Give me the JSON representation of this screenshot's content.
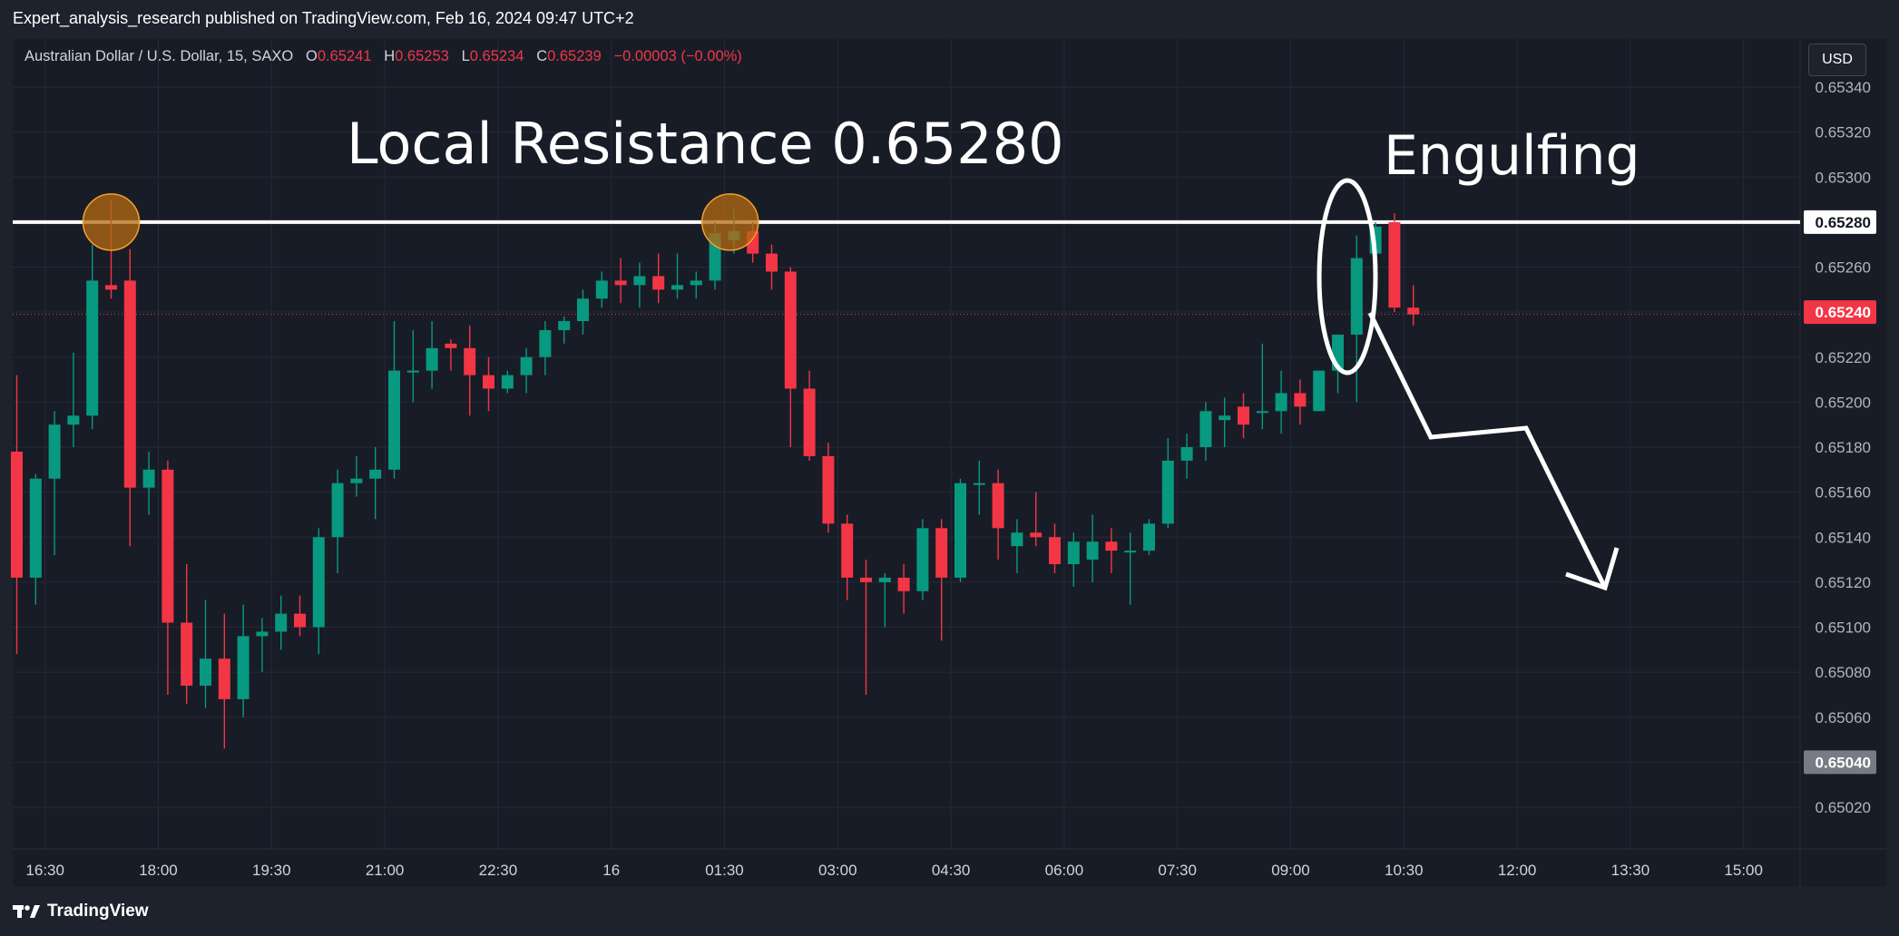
{
  "header": {
    "published_by": "Expert_analysis_research published on TradingView.com, Feb 16, 2024 09:47 UTC+2"
  },
  "symbol": {
    "name": "Australian Dollar / U.S. Dollar, 15, SAXO",
    "open_label": "O",
    "open": "0.65241",
    "high_label": "H",
    "high": "0.65253",
    "low_label": "L",
    "low": "0.65234",
    "close_label": "C",
    "close": "0.65239",
    "change": "−0.00003 (−0.00%)"
  },
  "currency_button": "USD",
  "footer": {
    "brand": "TradingView",
    "logo_icon": "tradingview-logo-icon"
  },
  "colors": {
    "up": "#089981",
    "down": "#f23645",
    "background": "#181c27",
    "grid": "#262a36",
    "annotation": "#ffffff",
    "marker_fill": "#b46a12",
    "marker_stroke": "#f0a030"
  },
  "annotations": {
    "resistance_title": "Local Resistance 0.65280",
    "pattern_label": "Engulfing"
  },
  "chart_data": {
    "type": "candlestick",
    "symbol": "AUDUSD",
    "interval": "15",
    "ylim": [
      0.65005,
      0.65345
    ],
    "y_ticks": [
      "0.65340",
      "0.65320",
      "0.65300",
      "0.65280",
      "0.65260",
      "0.65240",
      "0.65220",
      "0.65200",
      "0.65180",
      "0.65160",
      "0.65140",
      "0.65120",
      "0.65100",
      "0.65080",
      "0.65060",
      "0.65040",
      "0.65020"
    ],
    "x_ticks": [
      "16:30",
      "18:00",
      "19:30",
      "21:00",
      "22:30",
      "16",
      "01:30",
      "03:00",
      "04:30",
      "06:00",
      "07:30",
      "09:00",
      "10:30",
      "12:00",
      "13:30",
      "15:00"
    ],
    "x_tick_bars": [
      1.5,
      7.5,
      13.5,
      19.5,
      25.5,
      31.5,
      37.5,
      43.5,
      49.5,
      55.5,
      61.5,
      67.5,
      73.5,
      79.5,
      85.5,
      91.5
    ],
    "price_labels": [
      {
        "text": "0.65280",
        "value": 0.6528,
        "style": "white"
      },
      {
        "text": "0.65240",
        "value": 0.6524,
        "style": "red"
      },
      {
        "text": "0.65040",
        "value": 0.6504,
        "style": "gray"
      }
    ],
    "resistance_level": 0.6528,
    "current_price": 0.65239,
    "ohlc": [
      [
        0.65178,
        0.65212,
        0.65088,
        0.65122
      ],
      [
        0.65122,
        0.65168,
        0.6511,
        0.65166
      ],
      [
        0.65166,
        0.65196,
        0.65132,
        0.6519
      ],
      [
        0.6519,
        0.65222,
        0.6518,
        0.65194
      ],
      [
        0.65194,
        0.6527,
        0.65188,
        0.65254
      ],
      [
        0.65252,
        0.6529,
        0.65246,
        0.6525
      ],
      [
        0.65254,
        0.65268,
        0.65136,
        0.65162
      ],
      [
        0.65162,
        0.65178,
        0.6515,
        0.6517
      ],
      [
        0.6517,
        0.65174,
        0.6507,
        0.65102
      ],
      [
        0.65102,
        0.65128,
        0.65066,
        0.65074
      ],
      [
        0.65074,
        0.65112,
        0.65064,
        0.65086
      ],
      [
        0.65086,
        0.65106,
        0.65046,
        0.65068
      ],
      [
        0.65068,
        0.6511,
        0.6506,
        0.65096
      ],
      [
        0.65096,
        0.65104,
        0.6508,
        0.65098
      ],
      [
        0.65098,
        0.65114,
        0.6509,
        0.65106
      ],
      [
        0.65106,
        0.65114,
        0.65096,
        0.651
      ],
      [
        0.651,
        0.65144,
        0.65088,
        0.6514
      ],
      [
        0.6514,
        0.6517,
        0.65124,
        0.65164
      ],
      [
        0.65164,
        0.65176,
        0.65158,
        0.65166
      ],
      [
        0.65166,
        0.6518,
        0.65148,
        0.6517
      ],
      [
        0.6517,
        0.65236,
        0.65166,
        0.65214
      ],
      [
        0.65214,
        0.65232,
        0.652,
        0.65214
      ],
      [
        0.65214,
        0.65236,
        0.65206,
        0.65224
      ],
      [
        0.65226,
        0.65228,
        0.65214,
        0.65224
      ],
      [
        0.65224,
        0.65234,
        0.65194,
        0.65212
      ],
      [
        0.65212,
        0.6522,
        0.65196,
        0.65206
      ],
      [
        0.65206,
        0.65214,
        0.65204,
        0.65212
      ],
      [
        0.65212,
        0.65224,
        0.65204,
        0.6522
      ],
      [
        0.6522,
        0.65236,
        0.65212,
        0.65232
      ],
      [
        0.65232,
        0.65238,
        0.65226,
        0.65236
      ],
      [
        0.65236,
        0.6525,
        0.6523,
        0.65246
      ],
      [
        0.65246,
        0.65258,
        0.65242,
        0.65254
      ],
      [
        0.65254,
        0.65264,
        0.65244,
        0.65252
      ],
      [
        0.65252,
        0.65262,
        0.65242,
        0.65256
      ],
      [
        0.65256,
        0.65266,
        0.65244,
        0.6525
      ],
      [
        0.6525,
        0.65266,
        0.65246,
        0.65252
      ],
      [
        0.65252,
        0.65258,
        0.65246,
        0.65254
      ],
      [
        0.65254,
        0.6528,
        0.6525,
        0.65275
      ],
      [
        0.65272,
        0.65286,
        0.65266,
        0.65276
      ],
      [
        0.65276,
        0.6528,
        0.65262,
        0.65266
      ],
      [
        0.65266,
        0.6527,
        0.6525,
        0.65258
      ],
      [
        0.65258,
        0.6526,
        0.6518,
        0.65206
      ],
      [
        0.65206,
        0.65214,
        0.65174,
        0.65176
      ],
      [
        0.65176,
        0.65182,
        0.65142,
        0.65146
      ],
      [
        0.65146,
        0.6515,
        0.65112,
        0.65122
      ],
      [
        0.65122,
        0.6513,
        0.6507,
        0.6512
      ],
      [
        0.6512,
        0.65124,
        0.651,
        0.65122
      ],
      [
        0.65122,
        0.65128,
        0.65106,
        0.65116
      ],
      [
        0.65116,
        0.65148,
        0.65112,
        0.65144
      ],
      [
        0.65144,
        0.65148,
        0.65094,
        0.65122
      ],
      [
        0.65122,
        0.65166,
        0.6512,
        0.65164
      ],
      [
        0.65164,
        0.65174,
        0.6515,
        0.65164
      ],
      [
        0.65164,
        0.6517,
        0.6513,
        0.65144
      ],
      [
        0.65136,
        0.65148,
        0.65124,
        0.65142
      ],
      [
        0.65142,
        0.6516,
        0.65136,
        0.6514
      ],
      [
        0.6514,
        0.65146,
        0.65124,
        0.65128
      ],
      [
        0.65128,
        0.65142,
        0.65118,
        0.65138
      ],
      [
        0.6513,
        0.6515,
        0.6512,
        0.65138
      ],
      [
        0.65138,
        0.65144,
        0.65124,
        0.65134
      ],
      [
        0.65134,
        0.65142,
        0.6511,
        0.65134
      ],
      [
        0.65134,
        0.65148,
        0.65132,
        0.65146
      ],
      [
        0.65146,
        0.65184,
        0.65144,
        0.65174
      ],
      [
        0.65174,
        0.65186,
        0.65166,
        0.6518
      ],
      [
        0.6518,
        0.652,
        0.65174,
        0.65196
      ],
      [
        0.65192,
        0.65202,
        0.6518,
        0.65194
      ],
      [
        0.65198,
        0.65204,
        0.65184,
        0.6519
      ],
      [
        0.65196,
        0.65226,
        0.65188,
        0.65196
      ],
      [
        0.65196,
        0.65214,
        0.65186,
        0.65204
      ],
      [
        0.65204,
        0.6521,
        0.6519,
        0.65198
      ],
      [
        0.65196,
        0.65214,
        0.65196,
        0.65214
      ],
      [
        0.65214,
        0.65228,
        0.65204,
        0.6523
      ],
      [
        0.6523,
        0.65274,
        0.652,
        0.65264
      ],
      [
        0.65266,
        0.6528,
        0.65246,
        0.65278
      ],
      [
        0.6528,
        0.65284,
        0.6524,
        0.65242
      ],
      [
        0.65242,
        0.65252,
        0.65234,
        0.65239
      ]
    ]
  }
}
